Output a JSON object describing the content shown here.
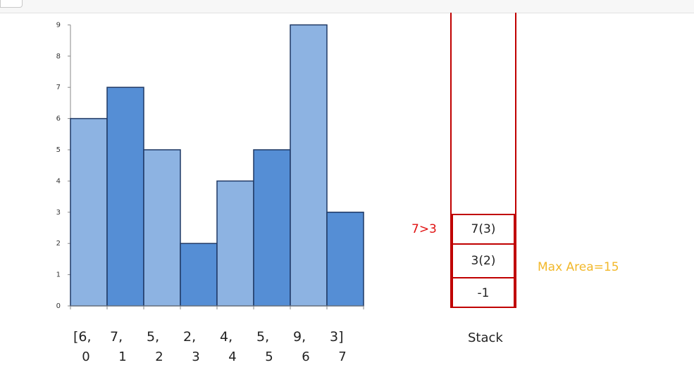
{
  "chart_data": {
    "type": "bar",
    "values": [
      6,
      7,
      5,
      2,
      4,
      5,
      9,
      3
    ],
    "ylim": [
      0,
      9
    ],
    "yticks": [
      "0",
      "1",
      "2",
      "3",
      "4",
      "5",
      "6",
      "7",
      "8",
      "9"
    ],
    "grid": false,
    "colors": [
      "#8db3e2",
      "#558ed5",
      "#8db3e2",
      "#558ed5",
      "#8db3e2",
      "#558ed5",
      "#8db3e2",
      "#558ed5"
    ]
  },
  "array_labels": [
    "[6,",
    "7,",
    "5,",
    "2,",
    "4,",
    "5,",
    "9,",
    "3]"
  ],
  "index_labels": [
    "0",
    "1",
    "2",
    "3",
    "4",
    "5",
    "6",
    "7"
  ],
  "stack": {
    "title": "Stack",
    "cells": [
      "7(3)",
      "3(2)",
      "-1"
    ],
    "border_color": "#c00000"
  },
  "comparison": "7>3",
  "max_area": "Max Area=15"
}
